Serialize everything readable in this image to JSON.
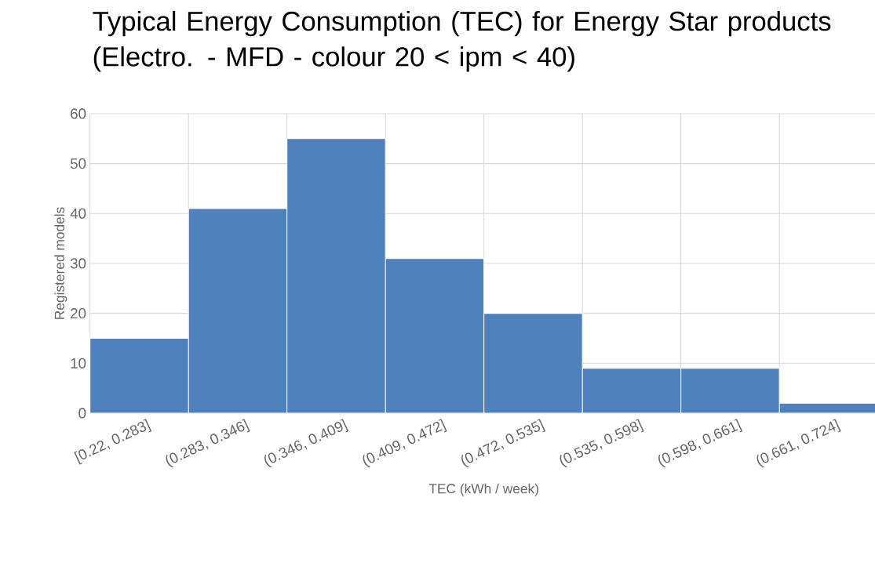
{
  "chart_data": {
    "type": "bar",
    "title": "Typical Energy Consumption (TEC) for Energy Star products (Electro. - MFD - colour 20 < ipm < 40)",
    "xlabel": "TEC (kWh / week)",
    "ylabel": "Registered models",
    "categories": [
      "[0.22, 0.283]",
      "(0.283, 0.346]",
      "(0.346, 0.409]",
      "(0.409, 0.472]",
      "(0.472, 0.535]",
      "(0.535, 0.598]",
      "(0.598, 0.661]",
      "(0.661, 0.724]"
    ],
    "values": [
      15,
      41,
      55,
      31,
      20,
      9,
      9,
      2
    ],
    "color": "#4f81bd",
    "ylim": [
      0,
      60
    ],
    "yticks": [
      0,
      10,
      20,
      30,
      40,
      50,
      60
    ],
    "grid": true
  }
}
